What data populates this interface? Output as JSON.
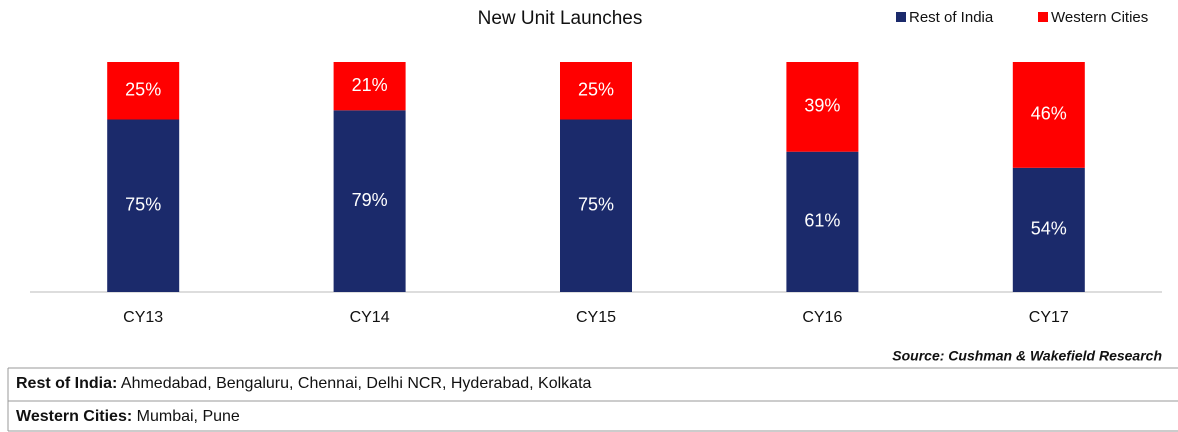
{
  "chart_data": {
    "type": "stacked_bar",
    "title": "New Unit Launches",
    "categories": [
      "CY13",
      "CY14",
      "CY15",
      "CY16",
      "CY17"
    ],
    "series": [
      {
        "name": "Rest of India",
        "color": "#1b2a6b",
        "values": [
          75,
          79,
          75,
          61,
          54
        ],
        "value_labels": [
          "75%",
          "79%",
          "75%",
          "61%",
          "54%"
        ]
      },
      {
        "name": "Western Cities",
        "color": "#ff0000",
        "values": [
          25,
          21,
          25,
          39,
          46
        ],
        "value_labels": [
          "25%",
          "21%",
          "25%",
          "39%",
          "46%"
        ]
      }
    ],
    "legend": "top-right",
    "source": "Source: Cushman & Wakefield Research"
  },
  "notes": [
    {
      "label": "Rest of India:",
      "text": "Ahmedabad, Bengaluru, Chennai, Delhi NCR, Hyderabad, Kolkata"
    },
    {
      "label": "Western Cities:",
      "text": "Mumbai, Pune"
    }
  ]
}
